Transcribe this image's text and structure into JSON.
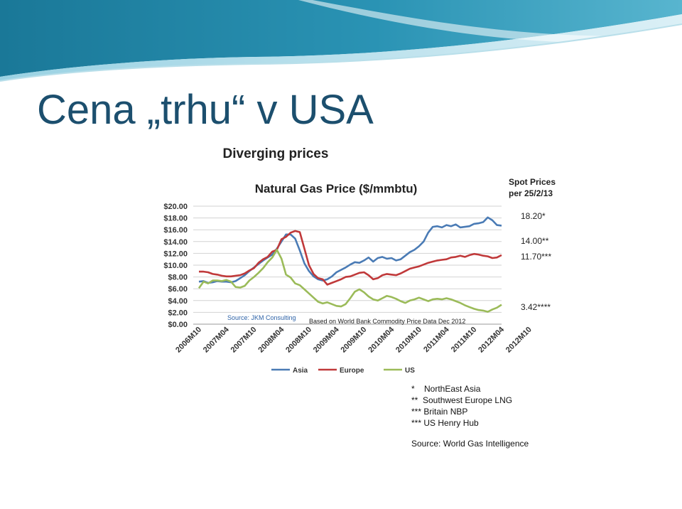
{
  "slide": {
    "title": "Cena „trhu“ v USA"
  },
  "colors": {
    "title": "#1c4f6e",
    "banner_dark": "#1f7d9c",
    "banner_light": "#cfe9f2",
    "asia": "#4a7bb5",
    "europe": "#c0393a",
    "us": "#9bbb59"
  },
  "chart_data": {
    "type": "line",
    "heading": "Diverging prices",
    "title": "Natural Gas Price ($/mmbtu)",
    "yticks": [
      "$0.00",
      "$2.00",
      "$4.00",
      "$6.00",
      "$8.00",
      "$10.00",
      "$12.00",
      "$14.00",
      "$16.00",
      "$18.00",
      "$20.00"
    ],
    "ylim": [
      0,
      20
    ],
    "xticks": [
      "2006M10",
      "2007M04",
      "2007M10",
      "2008M04",
      "2008M10",
      "2009M04",
      "2009M10",
      "2010M04",
      "2010M10",
      "2011M04",
      "2011M10",
      "2012M04",
      "2012M10"
    ],
    "x_start": "2006M10",
    "grid": true,
    "legend_position": "bottom",
    "source_left": "Source: JKM Consulting",
    "source_right": "Based on World Bank Commodity Price Data Dec 2012",
    "series": [
      {
        "name": "Asia",
        "color": "#4a7bb5",
        "values": [
          7.2,
          7.3,
          7.0,
          7.1,
          7.3,
          7.2,
          7.2,
          7.1,
          7.3,
          7.8,
          8.3,
          9.0,
          9.6,
          10.2,
          10.8,
          11.3,
          11.8,
          12.8,
          14.0,
          15.2,
          15.2,
          14.5,
          12.5,
          10.3,
          9.0,
          8.1,
          7.6,
          7.4,
          7.6,
          8.1,
          8.8,
          9.2,
          9.6,
          10.1,
          10.5,
          10.4,
          10.8,
          11.3,
          10.6,
          11.2,
          11.4,
          11.1,
          11.2,
          10.8,
          11.0,
          11.6,
          12.2,
          12.6,
          13.2,
          14.0,
          15.5,
          16.5,
          16.6,
          16.4,
          16.8,
          16.6,
          16.9,
          16.4,
          16.5,
          16.6,
          17.0,
          17.1,
          17.3,
          18.1,
          17.6,
          16.8,
          16.7
        ]
      },
      {
        "name": "Europe",
        "color": "#c0393a",
        "values": [
          8.9,
          8.9,
          8.8,
          8.5,
          8.4,
          8.2,
          8.1,
          8.1,
          8.2,
          8.3,
          8.6,
          9.1,
          9.5,
          10.4,
          11.0,
          11.4,
          12.3,
          12.6,
          14.4,
          14.8,
          15.5,
          15.8,
          15.6,
          12.8,
          10.0,
          8.5,
          7.8,
          7.6,
          6.7,
          7.0,
          7.3,
          7.6,
          8.0,
          8.1,
          8.4,
          8.7,
          8.8,
          8.3,
          7.6,
          7.8,
          8.3,
          8.5,
          8.4,
          8.3,
          8.6,
          9.0,
          9.4,
          9.6,
          9.8,
          10.1,
          10.4,
          10.6,
          10.8,
          10.9,
          11.0,
          11.3,
          11.4,
          11.6,
          11.4,
          11.7,
          11.9,
          11.8,
          11.6,
          11.5,
          11.2,
          11.3,
          11.7
        ]
      },
      {
        "name": "US",
        "color": "#9bbb59",
        "values": [
          6.1,
          7.2,
          6.9,
          7.4,
          7.4,
          7.3,
          7.5,
          7.2,
          6.3,
          6.2,
          6.5,
          7.4,
          8.0,
          8.7,
          9.5,
          10.5,
          11.3,
          12.6,
          11.1,
          8.4,
          7.9,
          6.9,
          6.6,
          5.9,
          5.2,
          4.5,
          3.8,
          3.5,
          3.7,
          3.4,
          3.1,
          3.0,
          3.4,
          4.4,
          5.5,
          5.9,
          5.4,
          4.7,
          4.2,
          4.0,
          4.4,
          4.8,
          4.6,
          4.3,
          3.9,
          3.6,
          4.0,
          4.2,
          4.5,
          4.2,
          3.9,
          4.2,
          4.3,
          4.2,
          4.4,
          4.2,
          3.9,
          3.6,
          3.2,
          2.9,
          2.6,
          2.4,
          2.3,
          2.1,
          2.5,
          2.8,
          3.3
        ]
      }
    ]
  },
  "spot_prices": {
    "heading_line1": "Spot Prices",
    "heading_line2": "per 25/2/13",
    "values": [
      "18.20*",
      "14.00**",
      "11.70***",
      "3.42****"
    ]
  },
  "footnotes": {
    "lines": [
      "*    NorthEast Asia",
      "**  Southwest Europe LNG",
      "*** Britain NBP",
      "*** US Henry Hub"
    ],
    "source": "Source: World Gas Intelligence"
  }
}
